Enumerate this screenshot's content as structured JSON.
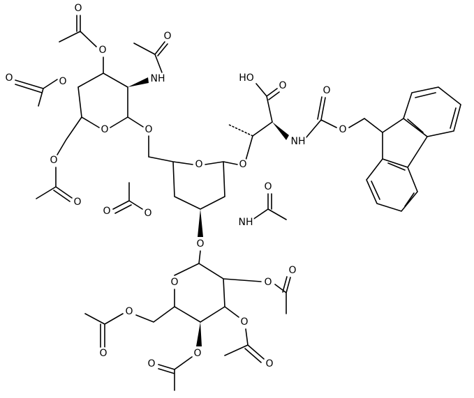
{
  "labels": [
    "O",
    "O",
    "O",
    "NH",
    "O",
    "O",
    "O",
    "O",
    "O",
    "O",
    "O",
    "O",
    "HO",
    "O",
    "NH",
    "O",
    "O",
    "O",
    "O",
    "NH",
    "O",
    "O",
    "O",
    "O",
    "O",
    "O",
    "O",
    "O",
    "O",
    "O",
    "O"
  ]
}
